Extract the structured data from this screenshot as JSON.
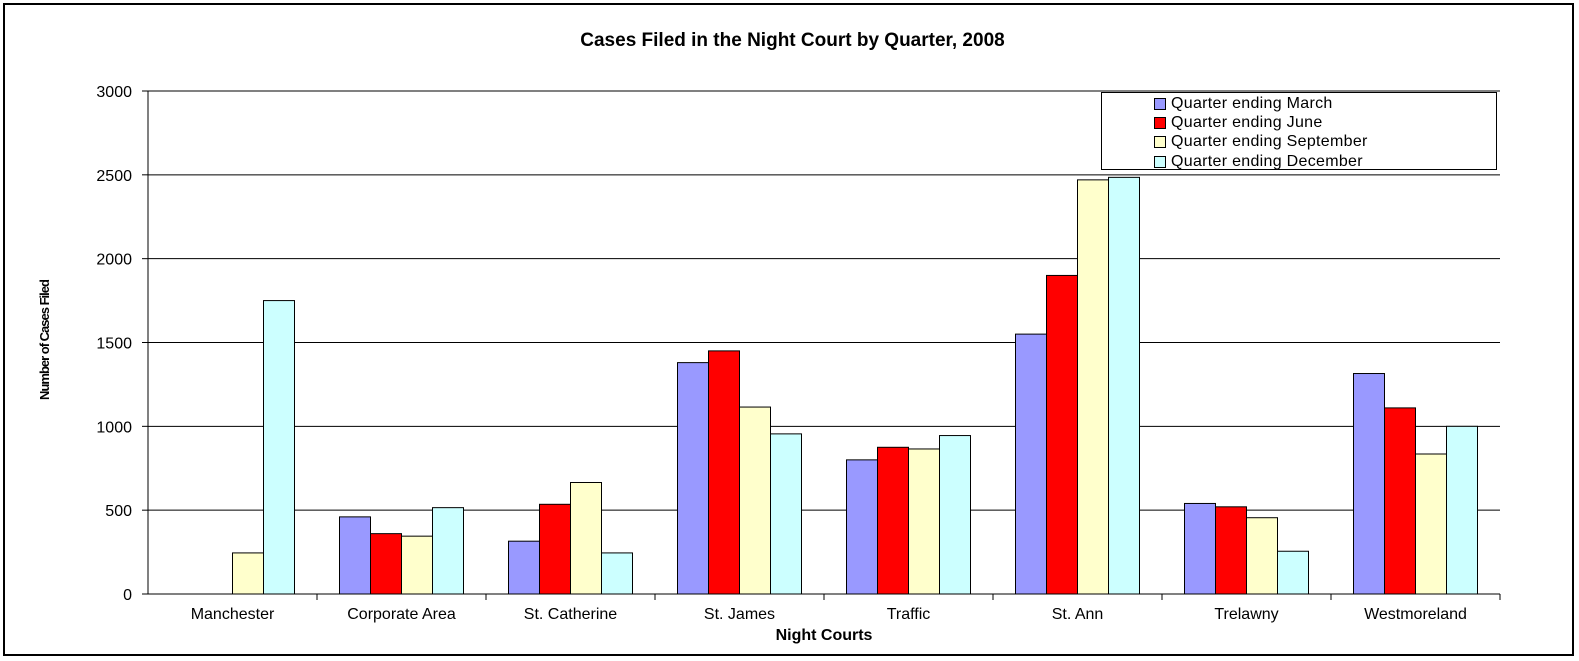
{
  "chart_data": {
    "type": "bar",
    "title": "Cases Filed in the Night Court by Quarter, 2008",
    "xlabel": "Night Courts",
    "ylabel": "Number of Cases Filed",
    "ylim": [
      0,
      3000
    ],
    "yticks": [
      "0",
      "500",
      "1000",
      "1500",
      "2000",
      "2500",
      "3000"
    ],
    "grid": true,
    "legend_position": "top-right",
    "categories": [
      "Manchester",
      "Corporate Area",
      "St. Catherine",
      "St. James",
      "Traffic",
      "St. Ann",
      "Trelawny",
      "Westmoreland"
    ],
    "series": [
      {
        "name": "Quarter ending March",
        "color": "#9999ff",
        "values": [
          0,
          460,
          315,
          1380,
          800,
          1550,
          540,
          1315
        ]
      },
      {
        "name": "Quarter ending June",
        "color": "#ff0000",
        "values": [
          0,
          360,
          535,
          1450,
          875,
          1900,
          520,
          1110
        ]
      },
      {
        "name": "Quarter ending September",
        "color": "#ffffcc",
        "values": [
          245,
          345,
          665,
          1115,
          865,
          2470,
          455,
          835
        ]
      },
      {
        "name": "Quarter ending December",
        "color": "#ccffff",
        "values": [
          1750,
          515,
          245,
          955,
          945,
          2485,
          255,
          1000
        ]
      }
    ]
  }
}
